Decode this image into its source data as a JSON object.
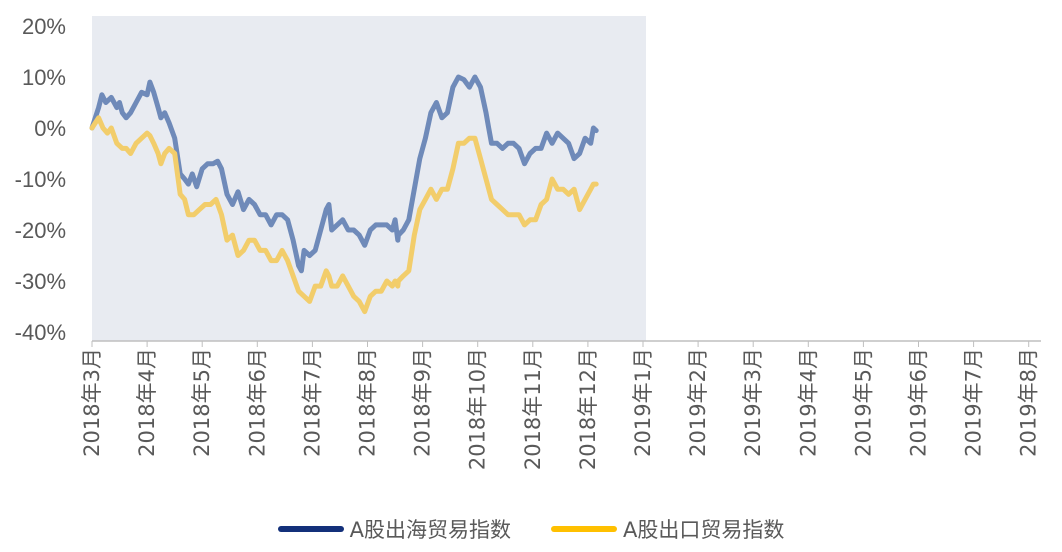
{
  "chart_data": {
    "type": "line",
    "x": [
      "2018年3月",
      "2018年4月",
      "2018年5月",
      "2018年6月",
      "2018年7月",
      "2018年8月",
      "2018年9月",
      "2018年10月",
      "2018年11月",
      "2018年12月",
      "2019年1月",
      "2019年2月",
      "2019年3月",
      "2019年4月",
      "2019年5月",
      "2019年6月",
      "2019年7月",
      "2019年8月"
    ],
    "yticks": [
      "20%",
      "10%",
      "0%",
      "-10%",
      "-20%",
      "-30%",
      "-40%"
    ],
    "ylim": [
      -40,
      20
    ],
    "y_unit": "%",
    "shaded_region": {
      "from": "2018年3月",
      "to": "2019年1月",
      "color": "#e8ebf1"
    },
    "legend_position": "bottom",
    "grid": false,
    "series": [
      {
        "name": "A股出海贸易指数",
        "color": "#13307a",
        "shaded_color": "#6f8ab9",
        "points": [
          [
            0,
            0
          ],
          [
            0.06,
            2
          ],
          [
            0.12,
            4
          ],
          [
            0.18,
            6.5
          ],
          [
            0.25,
            5
          ],
          [
            0.35,
            6
          ],
          [
            0.45,
            4
          ],
          [
            0.5,
            5
          ],
          [
            0.55,
            3
          ],
          [
            0.62,
            2
          ],
          [
            0.7,
            3
          ],
          [
            0.8,
            5
          ],
          [
            0.9,
            7
          ],
          [
            1.0,
            6.5
          ],
          [
            1.05,
            9
          ],
          [
            1.12,
            7
          ],
          [
            1.2,
            4
          ],
          [
            1.25,
            2
          ],
          [
            1.32,
            3
          ],
          [
            1.4,
            1
          ],
          [
            1.5,
            -2
          ],
          [
            1.6,
            -9
          ],
          [
            1.68,
            -10
          ],
          [
            1.75,
            -11
          ],
          [
            1.82,
            -9
          ],
          [
            1.9,
            -11.5
          ],
          [
            2.0,
            -8
          ],
          [
            2.1,
            -7
          ],
          [
            2.2,
            -7
          ],
          [
            2.28,
            -6.5
          ],
          [
            2.35,
            -8
          ],
          [
            2.45,
            -13
          ],
          [
            2.55,
            -15
          ],
          [
            2.65,
            -12.5
          ],
          [
            2.75,
            -16
          ],
          [
            2.85,
            -14
          ],
          [
            2.95,
            -15
          ],
          [
            3.05,
            -17
          ],
          [
            3.15,
            -17
          ],
          [
            3.25,
            -19
          ],
          [
            3.35,
            -17
          ],
          [
            3.45,
            -17
          ],
          [
            3.55,
            -18
          ],
          [
            3.65,
            -22
          ],
          [
            3.75,
            -27
          ],
          [
            3.8,
            -28
          ],
          [
            3.85,
            -24
          ],
          [
            3.95,
            -25
          ],
          [
            4.05,
            -24
          ],
          [
            4.15,
            -20
          ],
          [
            4.25,
            -16
          ],
          [
            4.3,
            -15
          ],
          [
            4.35,
            -20
          ],
          [
            4.45,
            -19
          ],
          [
            4.55,
            -18
          ],
          [
            4.65,
            -20
          ],
          [
            4.75,
            -20
          ],
          [
            4.85,
            -21
          ],
          [
            4.95,
            -23
          ],
          [
            5.05,
            -20
          ],
          [
            5.15,
            -19
          ],
          [
            5.25,
            -19
          ],
          [
            5.35,
            -19
          ],
          [
            5.45,
            -20
          ],
          [
            5.5,
            -18
          ],
          [
            5.55,
            -22
          ],
          [
            5.56,
            -21
          ],
          [
            5.65,
            -20
          ],
          [
            5.75,
            -18
          ],
          [
            5.85,
            -12
          ],
          [
            5.95,
            -6
          ],
          [
            6.05,
            -2
          ],
          [
            6.15,
            3
          ],
          [
            6.25,
            5
          ],
          [
            6.35,
            2
          ],
          [
            6.45,
            3
          ],
          [
            6.55,
            8
          ],
          [
            6.65,
            10
          ],
          [
            6.75,
            9.5
          ],
          [
            6.85,
            8
          ],
          [
            6.95,
            10
          ],
          [
            7.05,
            8
          ],
          [
            7.15,
            3
          ],
          [
            7.2,
            0
          ],
          [
            7.25,
            -3
          ],
          [
            7.35,
            -3
          ],
          [
            7.45,
            -4
          ],
          [
            7.55,
            -3
          ],
          [
            7.65,
            -3
          ],
          [
            7.75,
            -4
          ],
          [
            7.85,
            -7
          ],
          [
            7.95,
            -5
          ],
          [
            8.05,
            -4
          ],
          [
            8.15,
            -4
          ],
          [
            8.25,
            -1
          ],
          [
            8.35,
            -3
          ],
          [
            8.45,
            -1
          ],
          [
            8.55,
            -2
          ],
          [
            8.65,
            -3
          ],
          [
            8.75,
            -6
          ],
          [
            8.85,
            -5
          ],
          [
            8.95,
            -2
          ],
          [
            9.05,
            -3
          ],
          [
            9.1,
            0
          ],
          [
            9.15,
            -0.5
          ]
        ]
      },
      {
        "name": "A股出口贸易指数",
        "color": "#ffc000",
        "shaded_color": "#f2cd6b",
        "points": [
          [
            0,
            0
          ],
          [
            0.06,
            1
          ],
          [
            0.12,
            2
          ],
          [
            0.2,
            0
          ],
          [
            0.28,
            -1
          ],
          [
            0.35,
            0
          ],
          [
            0.45,
            -3
          ],
          [
            0.55,
            -4
          ],
          [
            0.62,
            -4
          ],
          [
            0.7,
            -5
          ],
          [
            0.8,
            -3
          ],
          [
            0.9,
            -2
          ],
          [
            1.0,
            -1
          ],
          [
            1.05,
            -1.5
          ],
          [
            1.12,
            -3
          ],
          [
            1.2,
            -5
          ],
          [
            1.25,
            -7
          ],
          [
            1.32,
            -5
          ],
          [
            1.4,
            -4
          ],
          [
            1.5,
            -5
          ],
          [
            1.6,
            -13
          ],
          [
            1.68,
            -14
          ],
          [
            1.75,
            -17
          ],
          [
            1.85,
            -17
          ],
          [
            1.95,
            -16
          ],
          [
            2.05,
            -15
          ],
          [
            2.15,
            -15
          ],
          [
            2.25,
            -14
          ],
          [
            2.35,
            -17
          ],
          [
            2.45,
            -22
          ],
          [
            2.55,
            -21
          ],
          [
            2.65,
            -25
          ],
          [
            2.75,
            -24
          ],
          [
            2.85,
            -22
          ],
          [
            2.95,
            -22
          ],
          [
            3.05,
            -24
          ],
          [
            3.15,
            -24
          ],
          [
            3.25,
            -26
          ],
          [
            3.35,
            -26
          ],
          [
            3.45,
            -24
          ],
          [
            3.55,
            -26
          ],
          [
            3.65,
            -29
          ],
          [
            3.75,
            -32
          ],
          [
            3.85,
            -33
          ],
          [
            3.95,
            -34
          ],
          [
            4.05,
            -31
          ],
          [
            4.15,
            -31
          ],
          [
            4.25,
            -28
          ],
          [
            4.3,
            -29
          ],
          [
            4.35,
            -31
          ],
          [
            4.45,
            -31
          ],
          [
            4.55,
            -29
          ],
          [
            4.65,
            -31
          ],
          [
            4.75,
            -33
          ],
          [
            4.85,
            -34
          ],
          [
            4.95,
            -36
          ],
          [
            5.05,
            -33
          ],
          [
            5.15,
            -32
          ],
          [
            5.25,
            -32
          ],
          [
            5.35,
            -30
          ],
          [
            5.45,
            -31
          ],
          [
            5.5,
            -30
          ],
          [
            5.55,
            -31
          ],
          [
            5.56,
            -30
          ],
          [
            5.65,
            -29
          ],
          [
            5.75,
            -28
          ],
          [
            5.85,
            -21
          ],
          [
            5.95,
            -16
          ],
          [
            6.05,
            -14
          ],
          [
            6.15,
            -12
          ],
          [
            6.25,
            -14
          ],
          [
            6.35,
            -12
          ],
          [
            6.45,
            -12
          ],
          [
            6.55,
            -8
          ],
          [
            6.65,
            -3
          ],
          [
            6.75,
            -3
          ],
          [
            6.85,
            -2
          ],
          [
            6.95,
            -2
          ],
          [
            7.05,
            -6
          ],
          [
            7.15,
            -10
          ],
          [
            7.25,
            -14
          ],
          [
            7.35,
            -15
          ],
          [
            7.45,
            -16
          ],
          [
            7.55,
            -17
          ],
          [
            7.65,
            -17
          ],
          [
            7.75,
            -17
          ],
          [
            7.85,
            -19
          ],
          [
            7.95,
            -18
          ],
          [
            8.05,
            -18
          ],
          [
            8.15,
            -15
          ],
          [
            8.25,
            -14
          ],
          [
            8.35,
            -10
          ],
          [
            8.45,
            -12
          ],
          [
            8.55,
            -12
          ],
          [
            8.65,
            -13
          ],
          [
            8.75,
            -12
          ],
          [
            8.85,
            -16
          ],
          [
            8.95,
            -14
          ],
          [
            9.05,
            -12
          ],
          [
            9.1,
            -11
          ],
          [
            9.15,
            -11
          ]
        ]
      }
    ]
  }
}
